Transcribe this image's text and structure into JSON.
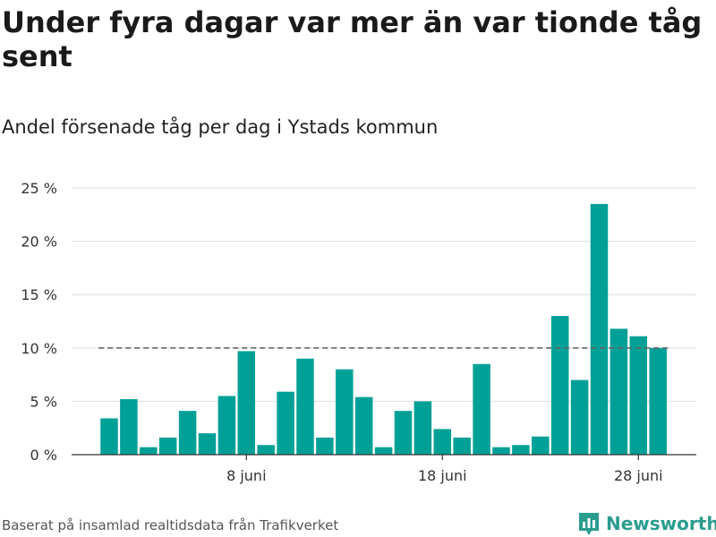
{
  "title": "Under fyra dagar var mer än var tionde tåg sent",
  "subtitle": "Andel försenade tåg per dag i Ystads kommun",
  "source": "Baserat på insamlad realtidsdata från Trafikverket",
  "brand": {
    "name": "Newsworthy",
    "icon": "bar-chart-logo-icon",
    "color": "#2a9d8f"
  },
  "chart_data": {
    "type": "bar",
    "title": "",
    "xlabel": "",
    "ylabel": "",
    "color": "#00a096",
    "reference_line": {
      "value": 10,
      "style": "dashed",
      "color": "#666666"
    },
    "ylim": [
      0,
      25
    ],
    "yticks": [
      {
        "value": 0,
        "label": "0 %"
      },
      {
        "value": 5,
        "label": "5 %"
      },
      {
        "value": 10,
        "label": "10 %"
      },
      {
        "value": 15,
        "label": "15 %"
      },
      {
        "value": 20,
        "label": "20 %"
      },
      {
        "value": 25,
        "label": "25 %"
      }
    ],
    "xticks": [
      {
        "date": "8 juni",
        "label": "8 juni"
      },
      {
        "date": "18 juni",
        "label": "18 juni"
      },
      {
        "date": "28 juni",
        "label": "28 juni"
      }
    ],
    "categories": [
      "1 juni",
      "2 juni",
      "3 juni",
      "4 juni",
      "5 juni",
      "6 juni",
      "7 juni",
      "8 juni",
      "9 juni",
      "10 juni",
      "11 juni",
      "12 juni",
      "13 juni",
      "14 juni",
      "15 juni",
      "16 juni",
      "17 juni",
      "18 juni",
      "19 juni",
      "20 juni",
      "21 juni",
      "22 juni",
      "23 juni",
      "24 juni",
      "25 juni",
      "26 juni",
      "27 juni",
      "28 juni",
      "29 juni"
    ],
    "values": [
      3.4,
      5.2,
      0.7,
      1.6,
      4.1,
      2.0,
      5.5,
      9.7,
      0.9,
      5.9,
      9.0,
      1.6,
      8.0,
      5.4,
      0.7,
      4.1,
      5.0,
      2.4,
      1.6,
      8.5,
      0.7,
      0.9,
      1.7,
      13.0,
      7.0,
      23.5,
      11.8,
      11.1,
      10.0
    ],
    "grid": true,
    "legend": "none"
  }
}
